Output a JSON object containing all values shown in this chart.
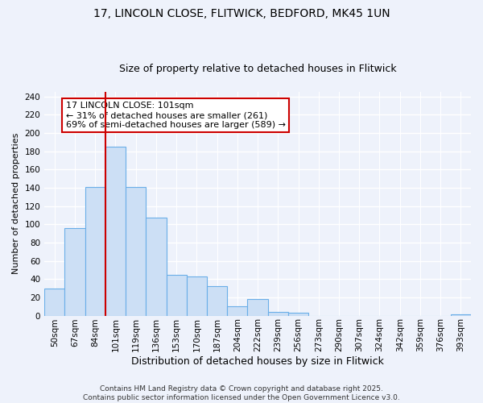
{
  "title_line1": "17, LINCOLN CLOSE, FLITWICK, BEDFORD, MK45 1UN",
  "title_line2": "Size of property relative to detached houses in Flitwick",
  "xlabel": "Distribution of detached houses by size in Flitwick",
  "ylabel": "Number of detached properties",
  "bar_labels": [
    "50sqm",
    "67sqm",
    "84sqm",
    "101sqm",
    "119sqm",
    "136sqm",
    "153sqm",
    "170sqm",
    "187sqm",
    "204sqm",
    "222sqm",
    "239sqm",
    "256sqm",
    "273sqm",
    "290sqm",
    "307sqm",
    "324sqm",
    "342sqm",
    "359sqm",
    "376sqm",
    "393sqm"
  ],
  "bar_values": [
    30,
    96,
    141,
    185,
    141,
    107,
    45,
    43,
    32,
    10,
    18,
    4,
    3,
    0,
    0,
    0,
    0,
    0,
    0,
    0,
    1
  ],
  "bar_color": "#ccdff5",
  "bar_edge_color": "#6aaee8",
  "vline_x": 2.5,
  "vline_color": "#cc0000",
  "annotation_title": "17 LINCOLN CLOSE: 101sqm",
  "annotation_line2": "← 31% of detached houses are smaller (261)",
  "annotation_line3": "69% of semi-detached houses are larger (589) →",
  "annotation_box_facecolor": "#ffffff",
  "annotation_box_edgecolor": "#cc0000",
  "ylim": [
    0,
    245
  ],
  "yticks": [
    0,
    20,
    40,
    60,
    80,
    100,
    120,
    140,
    160,
    180,
    200,
    220,
    240
  ],
  "footer_line1": "Contains HM Land Registry data © Crown copyright and database right 2025.",
  "footer_line2": "Contains public sector information licensed under the Open Government Licence v3.0.",
  "bg_color": "#eef2fb",
  "grid_color": "#ffffff",
  "title1_fontsize": 10,
  "title2_fontsize": 9,
  "ylabel_fontsize": 8,
  "xlabel_fontsize": 9,
  "tick_fontsize": 7.5,
  "ann_fontsize": 8,
  "footer_fontsize": 6.5
}
